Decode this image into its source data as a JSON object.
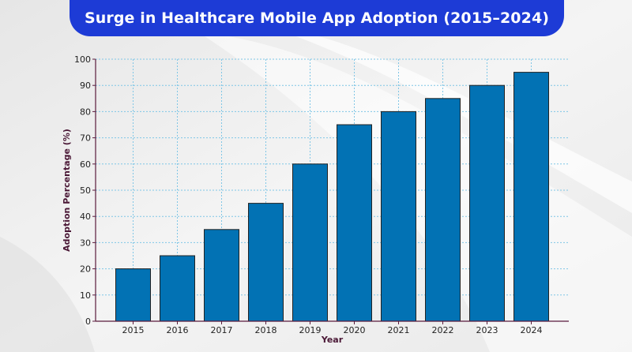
{
  "header": {
    "title": "Surge in Healthcare Mobile App Adoption (2015–2024)"
  },
  "colors": {
    "banner": "#1d3bd6",
    "bar_fill": "#0272b4",
    "bar_edge": "#222222",
    "grid": "#7fc6e6",
    "axis_line": "#5a1b3c",
    "axis_title": "#4a1836"
  },
  "chart_data": {
    "type": "bar",
    "title": "Surge in Healthcare Mobile App Adoption (2015–2024)",
    "xlabel": "Year",
    "ylabel": "Adoption Percentage (%)",
    "categories": [
      "2015",
      "2016",
      "2017",
      "2018",
      "2019",
      "2020",
      "2021",
      "2022",
      "2023",
      "2024"
    ],
    "values": [
      20,
      25,
      35,
      45,
      60,
      75,
      80,
      85,
      90,
      95
    ],
    "ylim": [
      0,
      100
    ],
    "yticks": [
      "0",
      "10",
      "20",
      "30",
      "40",
      "50",
      "60",
      "70",
      "80",
      "90",
      "100"
    ],
    "grid": true,
    "legend": "none"
  }
}
